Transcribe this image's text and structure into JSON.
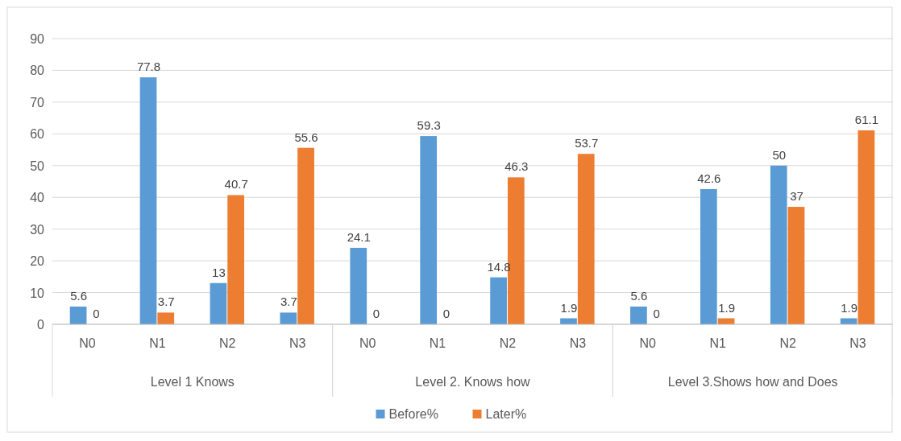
{
  "chart_data": {
    "type": "bar",
    "categories": [
      "N0",
      "N1",
      "N2",
      "N3",
      "N0",
      "N1",
      "N2",
      "N3",
      "N0",
      "N1",
      "N2",
      "N3"
    ],
    "series": [
      {
        "name": "Before%",
        "color": "#5b9bd5",
        "values": [
          5.6,
          77.8,
          13,
          3.7,
          24.1,
          59.3,
          14.8,
          1.9,
          5.6,
          42.6,
          50,
          1.9
        ]
      },
      {
        "name": "Later%",
        "color": "#ed7d31",
        "values": [
          0,
          3.7,
          40.7,
          55.6,
          0,
          0,
          46.3,
          53.7,
          0,
          1.9,
          37,
          61.1
        ]
      }
    ],
    "annotations": [
      "Level 1 Knows",
      "Level 2. Knows how",
      "Level 3.Shows how and Does"
    ],
    "ylim": [
      0,
      90
    ],
    "yticks": [
      0,
      10,
      20,
      30,
      40,
      50,
      60,
      70,
      80,
      90
    ],
    "grid": "y",
    "legend": "bottom",
    "data_labels": true
  }
}
